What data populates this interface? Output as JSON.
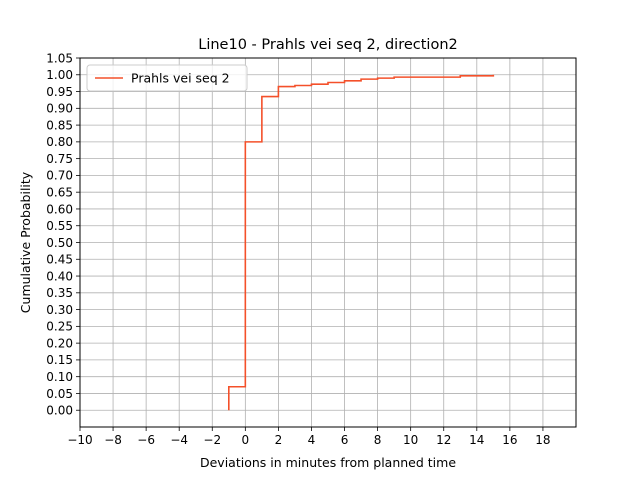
{
  "chart_data": {
    "type": "line",
    "title": "Line10 - Prahls vei seq 2, direction2",
    "xlabel": "Deviations in minutes from planned time",
    "ylabel": "Cumulative Probability",
    "xlim": [
      -10,
      20
    ],
    "ylim": [
      -0.05,
      1.05
    ],
    "grid": true,
    "legend_position": "upper-left",
    "x_ticks": [
      -10,
      -8,
      -6,
      -4,
      -2,
      0,
      2,
      4,
      6,
      8,
      10,
      12,
      14,
      16,
      18
    ],
    "x_tick_labels": [
      "−10",
      "−8",
      "−6",
      "−4",
      "−2",
      "0",
      "2",
      "4",
      "6",
      "8",
      "10",
      "12",
      "14",
      "16",
      "18"
    ],
    "y_ticks": [
      0,
      0.05,
      0.1,
      0.15,
      0.2,
      0.25,
      0.3,
      0.35,
      0.4,
      0.45,
      0.5,
      0.55,
      0.6,
      0.65,
      0.7,
      0.75,
      0.8,
      0.85,
      0.9,
      0.95,
      1.0,
      1.05
    ],
    "y_tick_labels": [
      "0.00",
      "0.05",
      "0.10",
      "0.15",
      "0.20",
      "0.25",
      "0.30",
      "0.35",
      "0.40",
      "0.45",
      "0.50",
      "0.55",
      "0.60",
      "0.65",
      "0.70",
      "0.75",
      "0.80",
      "0.85",
      "0.90",
      "0.95",
      "1.00",
      "1.05"
    ],
    "series": [
      {
        "name": "Prahls vei seq 2",
        "color": "#f4502a",
        "drawstyle": "steps-post",
        "x": [
          -1,
          -1,
          0,
          1,
          2,
          3,
          4,
          5,
          6,
          7,
          8,
          9,
          13,
          15
        ],
        "y": [
          0.0,
          0.07,
          0.8,
          0.935,
          0.965,
          0.968,
          0.972,
          0.977,
          0.982,
          0.987,
          0.99,
          0.993,
          0.997,
          1.0
        ]
      }
    ]
  }
}
